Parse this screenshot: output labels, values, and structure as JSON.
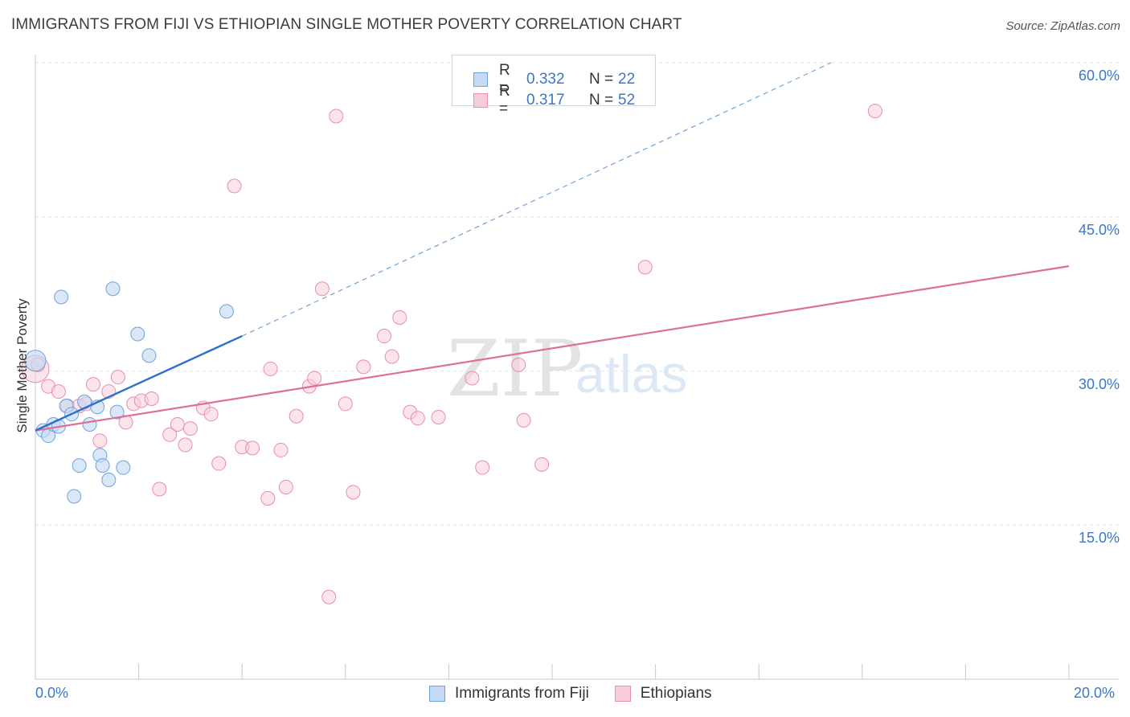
{
  "title": "IMMIGRANTS FROM FIJI VS ETHIOPIAN SINGLE MOTHER POVERTY CORRELATION CHART",
  "source": "Source: ZipAtlas.com",
  "watermark": {
    "zip": "ZIP",
    "atlas": "atlas"
  },
  "legend": {
    "fiji": {
      "r_label": "R =",
      "r_value": "0.332",
      "n_label": "N =",
      "n_value": "22"
    },
    "ethiopians": {
      "r_label": "R =",
      "r_value": "0.317",
      "n_label": "N =",
      "n_value": "52"
    }
  },
  "bottom_legend": {
    "fiji": "Immigrants from Fiji",
    "ethiopians": "Ethiopians"
  },
  "colors": {
    "fiji": "#6ea3dd",
    "fiji_fill": "#c5daf3",
    "fiji_line": "#2f6fcc",
    "eth": "#e98eab",
    "eth_fill": "#f7cdd9",
    "eth_line": "#e06e98",
    "tick": "#3a78c9"
  },
  "chart_data": {
    "type": "scatter",
    "title": "IMMIGRANTS FROM FIJI VS ETHIOPIAN SINGLE MOTHER POVERTY CORRELATION CHART",
    "xlabel": "",
    "ylabel": "Single Mother Poverty",
    "xlim": [
      0,
      20
    ],
    "ylim": [
      0,
      60
    ],
    "x_tick_labels": [
      "0.0%",
      "20.0%"
    ],
    "y_ticks": [
      15,
      30,
      45,
      60
    ],
    "y_tick_labels": [
      "15.0%",
      "30.0%",
      "45.0%",
      "60.0%"
    ],
    "grid": true,
    "legend_position": "top-center",
    "series": [
      {
        "name": "Immigrants from Fiji",
        "points": [
          [
            0.0,
            31.0
          ],
          [
            0.15,
            24.2
          ],
          [
            0.25,
            23.7
          ],
          [
            0.35,
            24.8
          ],
          [
            0.45,
            24.6
          ],
          [
            0.5,
            37.2
          ],
          [
            0.6,
            26.6
          ],
          [
            0.7,
            25.8
          ],
          [
            0.75,
            17.8
          ],
          [
            0.85,
            20.8
          ],
          [
            0.95,
            27.0
          ],
          [
            1.05,
            24.8
          ],
          [
            1.2,
            26.5
          ],
          [
            1.25,
            21.8
          ],
          [
            1.3,
            20.8
          ],
          [
            1.42,
            19.4
          ],
          [
            1.5,
            38.0
          ],
          [
            1.58,
            26.0
          ],
          [
            1.7,
            20.6
          ],
          [
            1.98,
            33.6
          ],
          [
            2.2,
            31.5
          ],
          [
            3.7,
            35.8
          ]
        ],
        "trend": {
          "x": [
            0.0,
            4.0
          ],
          "y": [
            24.2,
            33.4
          ]
        },
        "trend_extension": {
          "x": [
            4.0,
            15.4
          ],
          "y": [
            33.4,
            60.0
          ]
        }
      },
      {
        "name": "Ethiopians",
        "points": [
          [
            0.0,
            30.2
          ],
          [
            0.25,
            28.5
          ],
          [
            0.45,
            28.0
          ],
          [
            0.62,
            26.6
          ],
          [
            0.85,
            26.6
          ],
          [
            0.98,
            26.8
          ],
          [
            1.12,
            28.7
          ],
          [
            1.25,
            23.2
          ],
          [
            1.42,
            28.0
          ],
          [
            1.6,
            29.4
          ],
          [
            1.75,
            25.0
          ],
          [
            1.9,
            26.8
          ],
          [
            2.05,
            27.1
          ],
          [
            2.25,
            27.3
          ],
          [
            2.4,
            18.5
          ],
          [
            2.6,
            23.8
          ],
          [
            2.75,
            24.8
          ],
          [
            2.9,
            22.8
          ],
          [
            3.0,
            24.4
          ],
          [
            3.25,
            26.4
          ],
          [
            3.4,
            25.8
          ],
          [
            3.55,
            21.0
          ],
          [
            3.85,
            48.0
          ],
          [
            4.0,
            22.6
          ],
          [
            4.2,
            22.5
          ],
          [
            4.5,
            17.6
          ],
          [
            4.55,
            30.2
          ],
          [
            4.75,
            22.3
          ],
          [
            4.85,
            18.7
          ],
          [
            5.05,
            25.6
          ],
          [
            5.3,
            28.5
          ],
          [
            5.4,
            29.3
          ],
          [
            5.55,
            38.0
          ],
          [
            5.68,
            8.0
          ],
          [
            5.82,
            54.8
          ],
          [
            6.0,
            26.8
          ],
          [
            6.15,
            18.2
          ],
          [
            6.35,
            30.4
          ],
          [
            6.75,
            33.4
          ],
          [
            6.9,
            31.4
          ],
          [
            7.05,
            35.2
          ],
          [
            7.25,
            26.0
          ],
          [
            7.4,
            25.4
          ],
          [
            7.8,
            25.5
          ],
          [
            8.45,
            29.3
          ],
          [
            8.65,
            20.6
          ],
          [
            9.35,
            30.6
          ],
          [
            9.45,
            25.2
          ],
          [
            9.8,
            20.9
          ],
          [
            11.8,
            40.1
          ],
          [
            16.25,
            55.3
          ],
          [
            0.05,
            30.6
          ]
        ],
        "trend": {
          "x": [
            0.0,
            20.0
          ],
          "y": [
            24.2,
            40.2
          ]
        }
      }
    ]
  }
}
